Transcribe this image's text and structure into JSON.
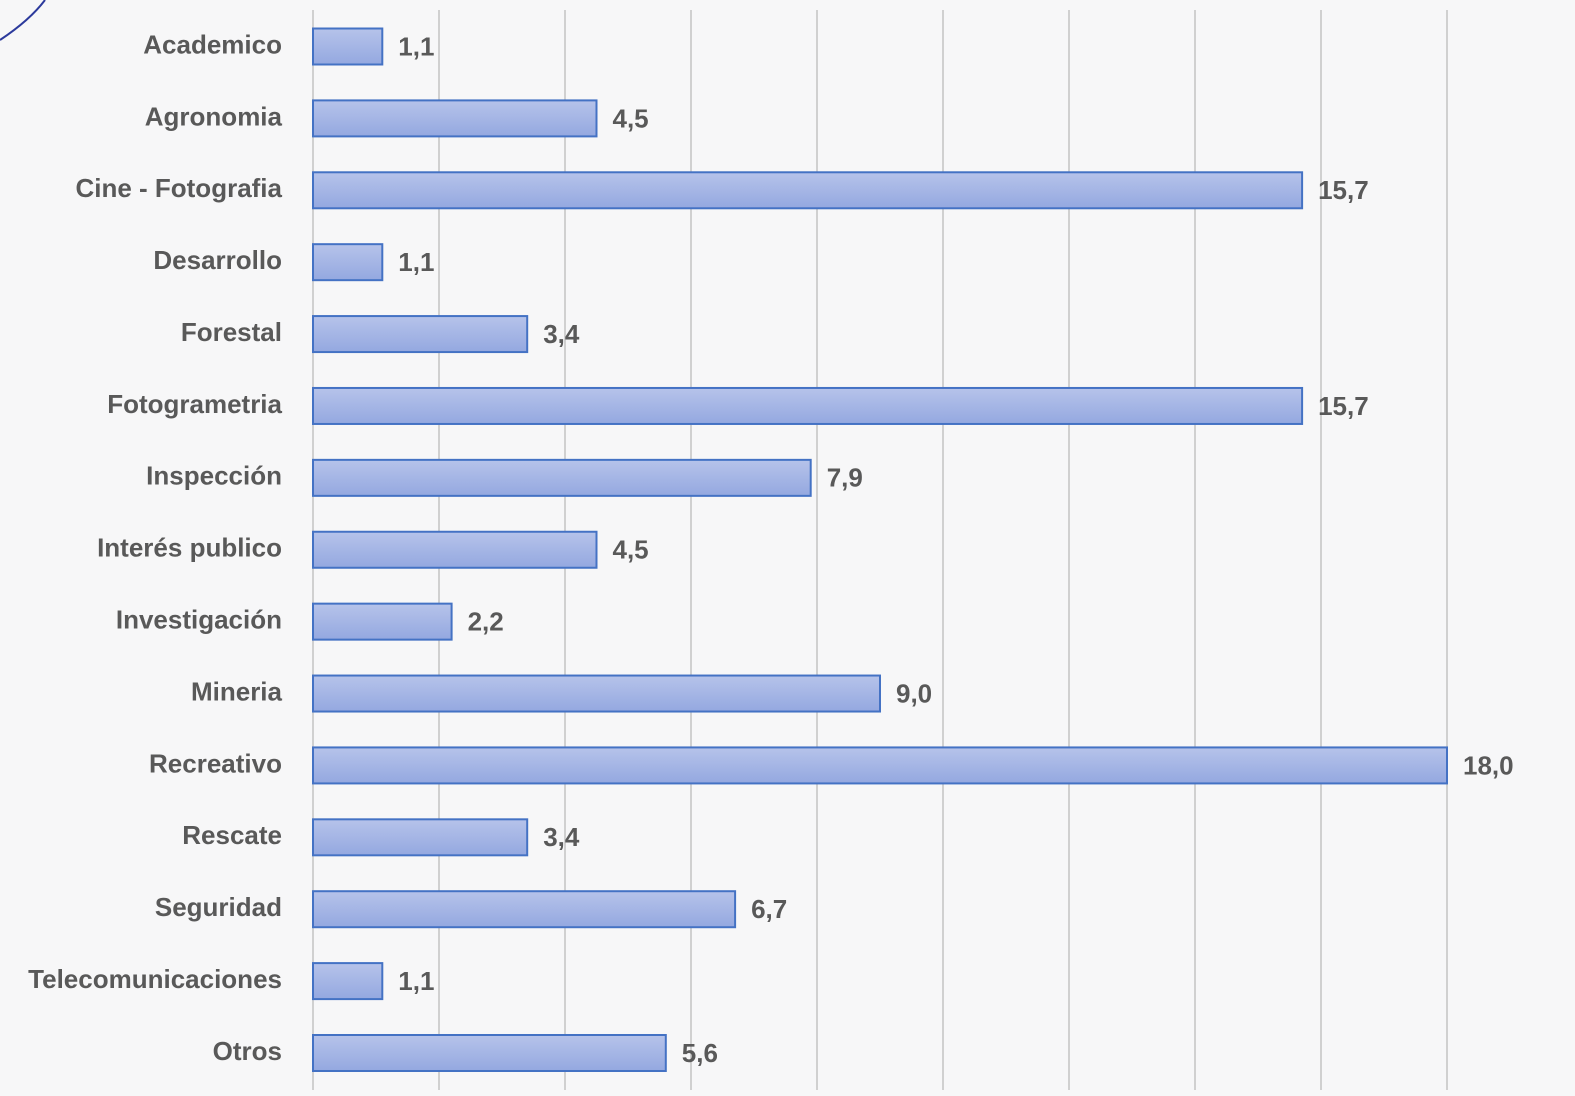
{
  "chart_data": {
    "type": "hbar",
    "categories": [
      "Academico",
      "Agronomia",
      "Cine - Fotografia",
      "Desarrollo",
      "Forestal",
      "Fotogrametria",
      "Inspección",
      "Interés publico",
      "Investigación",
      "Mineria",
      "Recreativo",
      "Rescate",
      "Seguridad",
      "Telecomunicaciones",
      "Otros"
    ],
    "values": [
      1.1,
      4.5,
      15.7,
      1.1,
      3.4,
      15.7,
      7.9,
      4.5,
      2.2,
      9.0,
      18.0,
      3.4,
      6.7,
      1.1,
      5.6
    ],
    "value_labels": [
      "1,1",
      "4,5",
      "15,7",
      "1,1",
      "3,4",
      "15,7",
      "7,9",
      "4,5",
      "2,2",
      "9,0",
      "18,0",
      "3,4",
      "6,7",
      "1,1",
      "5,6"
    ],
    "color": "#4472c4",
    "xlim": [
      0,
      20
    ],
    "xticks": [
      0,
      2,
      4,
      6,
      8,
      10,
      12,
      14,
      16,
      18
    ],
    "grid": true
  }
}
